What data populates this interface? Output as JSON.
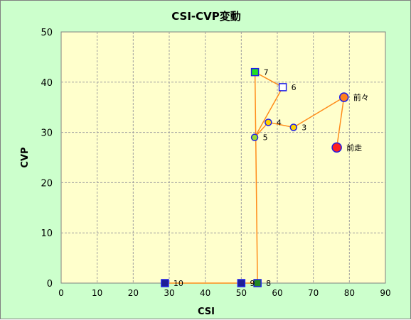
{
  "chart_data": {
    "type": "scatter",
    "title": "CSI-CVP変動",
    "xlabel": "CSI",
    "ylabel": "CVP",
    "xlim": [
      0,
      90
    ],
    "ylim": [
      0,
      50
    ],
    "x_ticks": [
      0,
      10,
      20,
      30,
      40,
      50,
      60,
      70,
      80,
      90
    ],
    "y_ticks": [
      0,
      10,
      20,
      30,
      40,
      50
    ],
    "grid": true,
    "colors": {
      "background": "#ccffcc",
      "plot_area": "#ffffcc",
      "line": "#ff8c1a",
      "grid": "#a0a0a0"
    },
    "points": [
      {
        "label": "前走",
        "x": 76.5,
        "y": 27,
        "marker": "circle-large",
        "fill": "#ff2020",
        "stroke": "#1e1ee6"
      },
      {
        "label": "前々",
        "x": 78.5,
        "y": 37,
        "marker": "circle",
        "fill": "#ff7f1a",
        "stroke": "#1e1ee6"
      },
      {
        "label": "3",
        "x": 64.5,
        "y": 31,
        "marker": "circle-small",
        "fill": "#ffd200",
        "stroke": "#1e1ee6"
      },
      {
        "label": "4",
        "x": 57.5,
        "y": 32,
        "marker": "circle-small",
        "fill": "#ffd200",
        "stroke": "#1e1ee6"
      },
      {
        "label": "5",
        "x": 53.7,
        "y": 29,
        "marker": "circle-small",
        "fill": "#99dd33",
        "stroke": "#1e1ee6"
      },
      {
        "label": "6",
        "x": 61.5,
        "y": 39,
        "marker": "square",
        "fill": "#ffffff",
        "stroke": "#1e1ee6"
      },
      {
        "label": "7",
        "x": 53.8,
        "y": 42,
        "marker": "square",
        "fill": "#22dd22",
        "stroke": "#1e1ee6"
      },
      {
        "label": "8",
        "x": 54.5,
        "y": 0,
        "marker": "square",
        "fill": "#228822",
        "stroke": "#1e1ee6"
      },
      {
        "label": "9",
        "x": 50.0,
        "y": 0,
        "marker": "square",
        "fill": "#1e1e96",
        "stroke": "#1e1ee6"
      },
      {
        "label": "10",
        "x": 28.8,
        "y": 0,
        "marker": "square",
        "fill": "#1e1e96",
        "stroke": "#1e1ee6"
      }
    ]
  }
}
